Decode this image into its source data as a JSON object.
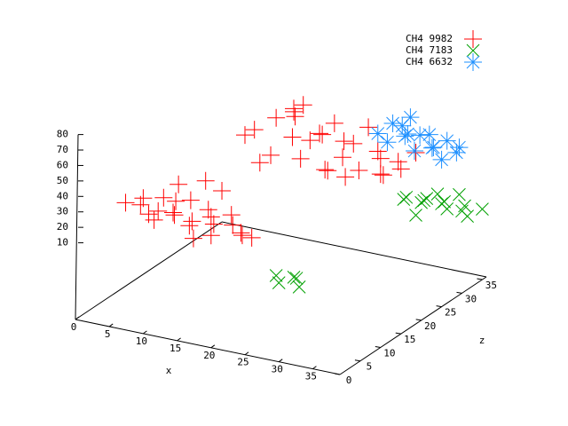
{
  "chart_data": {
    "type": "scatter3d",
    "xlabel": "x",
    "zlabel": "z",
    "xlim": [
      0,
      39
    ],
    "zlim": [
      0,
      36
    ],
    "ylim": [
      0,
      80
    ],
    "xticks": [
      0,
      5,
      10,
      15,
      20,
      25,
      30,
      35
    ],
    "zticks": [
      0,
      5,
      10,
      15,
      20,
      25,
      30,
      35
    ],
    "yticks": [
      10,
      20,
      30,
      40,
      50,
      60,
      70,
      80
    ],
    "legend": "top-right",
    "series": [
      {
        "name": "CH4 9982",
        "color": "#ff0000",
        "marker": "plus",
        "x": [
          2,
          3,
          4,
          5,
          6,
          7,
          8,
          9,
          10,
          11,
          12,
          13,
          14,
          15,
          16,
          17,
          18,
          19,
          20,
          8,
          10,
          12,
          5,
          14,
          12,
          15,
          10,
          12,
          14,
          15,
          16,
          17,
          18,
          19,
          20,
          21,
          22,
          23,
          24,
          25,
          26,
          27,
          28,
          29,
          30,
          31,
          32,
          33,
          34,
          14,
          18,
          22,
          26,
          30,
          16,
          24
        ],
        "z": [
          9,
          11,
          10,
          12,
          8,
          10,
          11,
          9,
          12,
          10,
          8,
          11,
          10,
          9,
          12,
          10,
          11,
          9,
          10,
          12,
          8,
          9,
          11,
          10,
          12,
          11,
          25,
          24,
          26,
          23,
          27,
          25,
          24,
          26,
          22,
          25,
          27,
          23,
          26,
          24,
          25,
          27,
          23,
          26,
          25,
          24,
          26,
          25,
          27,
          22,
          26,
          24,
          23,
          25,
          27,
          22
        ],
        "y": [
          22,
          18,
          25,
          14,
          20,
          28,
          16,
          22,
          12,
          30,
          18,
          24,
          10,
          20,
          15,
          26,
          12,
          18,
          14,
          34,
          32,
          8,
          10,
          22,
          40,
          38,
          45,
          52,
          58,
          40,
          62,
          50,
          66,
          48,
          44,
          56,
          60,
          38,
          52,
          46,
          54,
          62,
          42,
          50,
          48,
          40,
          46,
          44,
          52,
          36,
          70,
          58,
          36,
          38,
          64,
          40
        ]
      },
      {
        "name": "CH4 7183",
        "color": "#00a000",
        "marker": "cross",
        "x": [
          28,
          29,
          30,
          31,
          32,
          33,
          34,
          35,
          36,
          37,
          38,
          39,
          31,
          33,
          35,
          26,
          27,
          28,
          29,
          30
        ],
        "z": [
          34,
          33,
          35,
          34,
          33,
          35,
          34,
          33,
          35,
          34,
          33,
          35,
          32,
          34,
          36,
          6,
          5,
          7,
          6,
          5
        ],
        "y": [
          4,
          8,
          2,
          6,
          10,
          4,
          8,
          6,
          2,
          8,
          4,
          6,
          0,
          12,
          10,
          2,
          0,
          1,
          3,
          0
        ]
      },
      {
        "name": "CH4 6632",
        "color": "#1e90ff",
        "marker": "star",
        "x": [
          26,
          27,
          28,
          29,
          30,
          31,
          32,
          33,
          34,
          35,
          36,
          37,
          38,
          29,
          31,
          33
        ],
        "z": [
          31,
          33,
          30,
          32,
          31,
          33,
          30,
          32,
          31,
          33,
          30,
          32,
          31,
          34,
          30,
          33
        ],
        "y": [
          50,
          54,
          48,
          56,
          52,
          50,
          46,
          54,
          48,
          50,
          44,
          46,
          52,
          58,
          56,
          44
        ]
      }
    ]
  }
}
